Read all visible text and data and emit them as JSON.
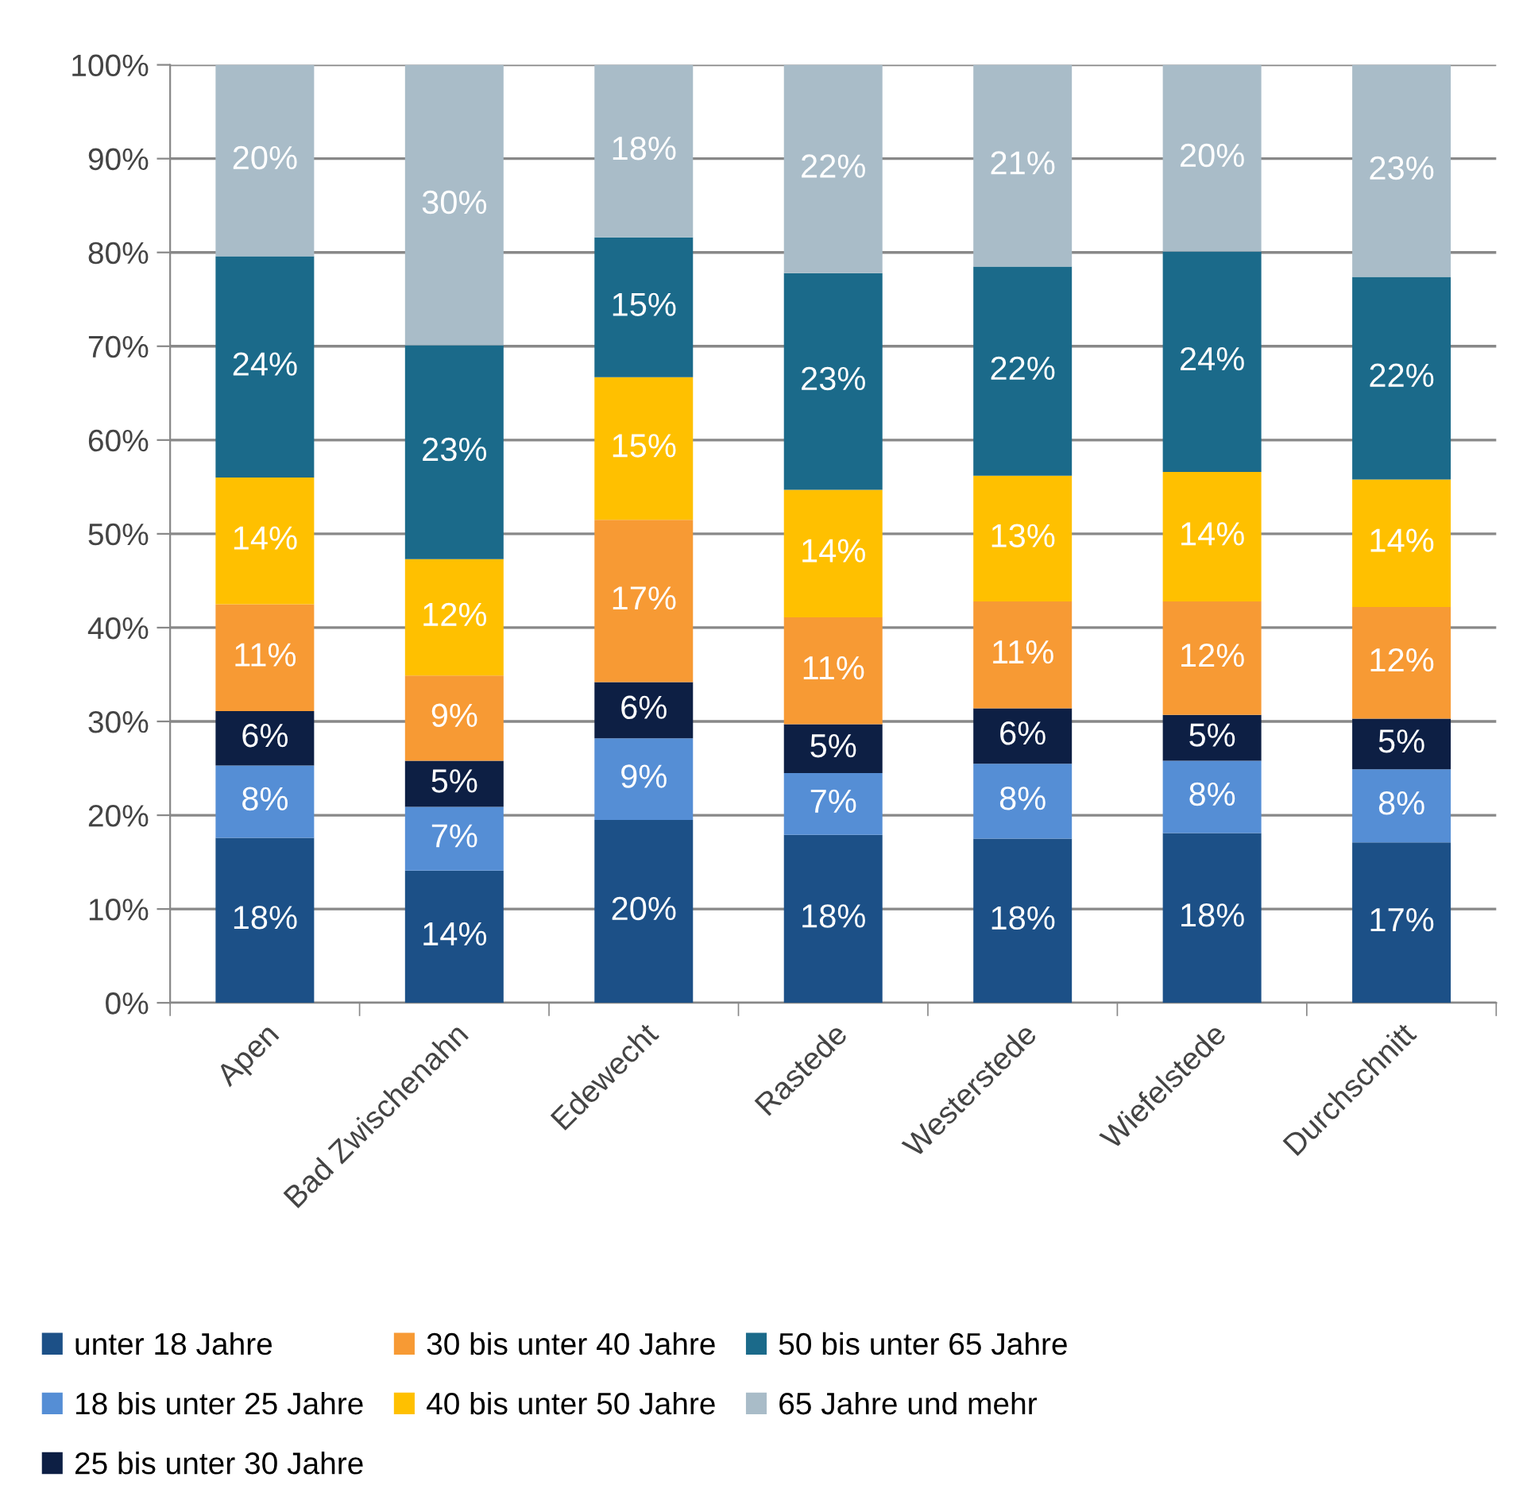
{
  "chart_data": {
    "type": "bar",
    "stacked": true,
    "categories": [
      "Apen",
      "Bad Zwischenahn",
      "Edewecht",
      "Rastede",
      "Westerstede",
      "Wiefelstede",
      "Durchschnitt"
    ],
    "ylim": [
      0,
      100
    ],
    "yticks": [
      {
        "value": 0,
        "label": "0%"
      },
      {
        "value": 10,
        "label": "10%"
      },
      {
        "value": 20,
        "label": "20%"
      },
      {
        "value": 30,
        "label": "30%"
      },
      {
        "value": 40,
        "label": "40%"
      },
      {
        "value": 50,
        "label": "50%"
      },
      {
        "value": 60,
        "label": "60%"
      },
      {
        "value": 70,
        "label": "70%"
      },
      {
        "value": 80,
        "label": "80%"
      },
      {
        "value": 90,
        "label": "90%"
      },
      {
        "value": 100,
        "label": "100%"
      }
    ],
    "grid": "y",
    "legend": "bottom",
    "series": [
      {
        "name": "unter 18 Jahre",
        "color": "#1c5087",
        "values": [
          17.6,
          14.1,
          19.5,
          17.9,
          17.5,
          18.1,
          17.1
        ],
        "value_labels": [
          "18%",
          "14%",
          "20%",
          "18%",
          "18%",
          "18%",
          "17%"
        ]
      },
      {
        "name": "18 bis unter 25 Jahre",
        "color": "#558ed5",
        "values": [
          7.7,
          6.8,
          8.7,
          6.6,
          8.0,
          7.7,
          7.8
        ],
        "value_labels": [
          "8%",
          "7%",
          "9%",
          "7%",
          "8%",
          "8%",
          "8%"
        ]
      },
      {
        "name": "25 bis unter 30 Jahre",
        "color": "#0d1f44",
        "values": [
          5.8,
          4.9,
          6.0,
          5.2,
          5.9,
          4.9,
          5.4
        ],
        "value_labels": [
          "6%",
          "5%",
          "6%",
          "5%",
          "6%",
          "5%",
          "5%"
        ]
      },
      {
        "name": "30 bis unter 40 Jahre",
        "color": "#f79a34",
        "values": [
          11.4,
          9.1,
          17.3,
          11.4,
          11.4,
          12.1,
          11.9
        ],
        "value_labels": [
          "11%",
          "9%",
          "17%",
          "11%",
          "11%",
          "12%",
          "12%"
        ]
      },
      {
        "name": "40 bis unter 50 Jahre",
        "color": "#ffc000",
        "values": [
          13.5,
          12.4,
          15.2,
          13.6,
          13.4,
          13.8,
          13.6
        ],
        "value_labels": [
          "14%",
          "12%",
          "15%",
          "14%",
          "13%",
          "14%",
          "14%"
        ]
      },
      {
        "name": "50 bis unter 65 Jahre",
        "color": "#1b6a8a",
        "values": [
          23.6,
          22.8,
          14.9,
          23.1,
          22.3,
          23.5,
          21.6
        ],
        "value_labels": [
          "24%",
          "23%",
          "15%",
          "23%",
          "22%",
          "24%",
          "22%"
        ]
      },
      {
        "name": "65 Jahre und mehr",
        "color": "#a9bcc8",
        "values": [
          20.4,
          29.9,
          18.4,
          22.2,
          21.5,
          19.9,
          22.6
        ],
        "value_labels": [
          "20%",
          "30%",
          "18%",
          "22%",
          "21%",
          "20%",
          "23%"
        ]
      }
    ]
  }
}
